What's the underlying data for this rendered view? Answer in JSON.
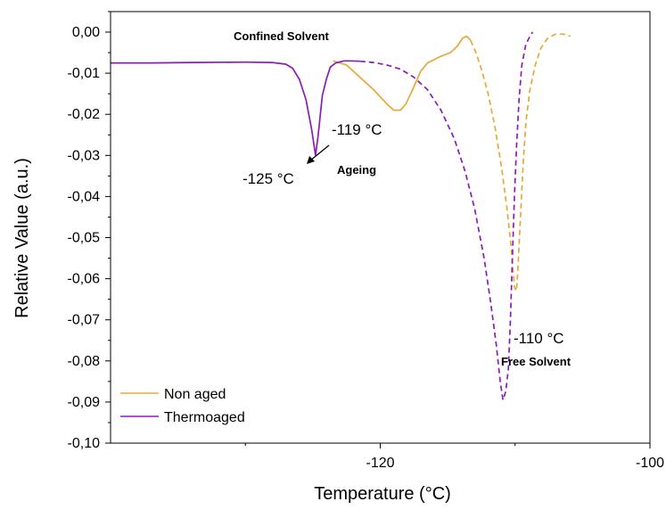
{
  "chart_data": {
    "type": "line",
    "title": "",
    "xlabel": "Temperature (°C)",
    "ylabel": "Relative Value (a.u.)",
    "xlim": [
      -140,
      -100
    ],
    "ylim": [
      -0.1,
      0.005
    ],
    "xticks": [
      -120,
      -100
    ],
    "xtick_labels": [
      "-120",
      "-100"
    ],
    "yticks": [
      0.0,
      -0.01,
      -0.02,
      -0.03,
      -0.04,
      -0.05,
      -0.06,
      -0.07,
      -0.08,
      -0.09,
      -0.1
    ],
    "ytick_labels": [
      "0,00",
      "-0,01",
      "-0,02",
      "-0,03",
      "-0,04",
      "-0,05",
      "-0,06",
      "-0,07",
      "-0,08",
      "-0,09",
      "-0,10"
    ],
    "legend_position": "bottom-left",
    "series": [
      {
        "name": "Non aged",
        "color": "#E8A838",
        "segments": [
          {
            "style": "solid",
            "points": [
              [
                -123.5,
                -0.007
              ],
              [
                -122.5,
                -0.008
              ],
              [
                -121.5,
                -0.011
              ],
              [
                -120.5,
                -0.014
              ],
              [
                -119.5,
                -0.0175
              ],
              [
                -119,
                -0.019
              ],
              [
                -118.5,
                -0.019
              ],
              [
                -118.1,
                -0.0175
              ],
              [
                -117.6,
                -0.014
              ],
              [
                -117,
                -0.0095
              ],
              [
                -116.5,
                -0.0075
              ],
              [
                -115.6,
                -0.006
              ],
              [
                -114.8,
                -0.005
              ],
              [
                -114.3,
                -0.0035
              ],
              [
                -113.9,
                -0.0015
              ],
              [
                -113.6,
                -0.001
              ],
              [
                -113.3,
                -0.002
              ]
            ]
          },
          {
            "style": "dashed",
            "points": [
              [
                -113.3,
                -0.002
              ],
              [
                -112.9,
                -0.005
              ],
              [
                -112.5,
                -0.009
              ],
              [
                -112,
                -0.015
              ],
              [
                -111.5,
                -0.023
              ],
              [
                -111,
                -0.033
              ],
              [
                -110.6,
                -0.043
              ],
              [
                -110.3,
                -0.052
              ],
              [
                -110.05,
                -0.062
              ],
              [
                -109.9,
                -0.063
              ],
              [
                -109.8,
                -0.058
              ],
              [
                -109.6,
                -0.045
              ],
              [
                -109.4,
                -0.032
              ],
              [
                -109.2,
                -0.022
              ],
              [
                -108.9,
                -0.014
              ],
              [
                -108.5,
                -0.008
              ],
              [
                -108.1,
                -0.004
              ],
              [
                -107.6,
                -0.0015
              ],
              [
                -107,
                -0.0005
              ],
              [
                -106.4,
                -0.0005
              ],
              [
                -105.9,
                -0.001
              ]
            ]
          }
        ]
      },
      {
        "name": "Thermoaged",
        "color": "#8B1CB8",
        "segments": [
          {
            "style": "solid",
            "points": [
              [
                -140,
                -0.0075
              ],
              [
                -137,
                -0.0075
              ],
              [
                -134,
                -0.0074
              ],
              [
                -130,
                -0.0073
              ],
              [
                -128,
                -0.0074
              ],
              [
                -127,
                -0.0078
              ],
              [
                -126.5,
                -0.0088
              ],
              [
                -126,
                -0.0115
              ],
              [
                -125.5,
                -0.0165
              ],
              [
                -125.1,
                -0.0235
              ],
              [
                -124.8,
                -0.03
              ],
              [
                -124.6,
                -0.025
              ],
              [
                -124.3,
                -0.0155
              ],
              [
                -124,
                -0.0115
              ],
              [
                -123.7,
                -0.0085
              ],
              [
                -123.3,
                -0.0075
              ],
              [
                -122.7,
                -0.007
              ],
              [
                -122.2,
                -0.007
              ],
              [
                -121.5,
                -0.0071
              ]
            ]
          },
          {
            "style": "dashed",
            "points": [
              [
                -121.5,
                -0.0071
              ],
              [
                -120.5,
                -0.0074
              ],
              [
                -119.5,
                -0.008
              ],
              [
                -118.5,
                -0.009
              ],
              [
                -117.5,
                -0.011
              ],
              [
                -116.5,
                -0.014
              ],
              [
                -115.5,
                -0.019
              ],
              [
                -114.5,
                -0.026
              ],
              [
                -113.7,
                -0.034
              ],
              [
                -113,
                -0.043
              ],
              [
                -112.3,
                -0.055
              ],
              [
                -111.8,
                -0.066
              ],
              [
                -111.4,
                -0.076
              ],
              [
                -111.1,
                -0.085
              ],
              [
                -110.9,
                -0.0895
              ],
              [
                -110.7,
                -0.0875
              ],
              [
                -110.5,
                -0.082
              ],
              [
                -110.35,
                -0.07
              ],
              [
                -110.2,
                -0.055
              ],
              [
                -110.05,
                -0.04
              ],
              [
                -109.9,
                -0.028
              ],
              [
                -109.7,
                -0.016
              ],
              [
                -109.5,
                -0.008
              ],
              [
                -109.2,
                -0.003
              ],
              [
                -108.9,
                -0.001
              ],
              [
                -108.7,
                0.0
              ]
            ]
          }
        ]
      }
    ],
    "annotations": {
      "confined_solvent": "Confined Solvent",
      "temp_119": "-119 °C",
      "temp_125": "-125 °C",
      "ageing": "Ageing",
      "temp_110": "-110 °C",
      "free_solvent": "Free Solvent"
    }
  }
}
